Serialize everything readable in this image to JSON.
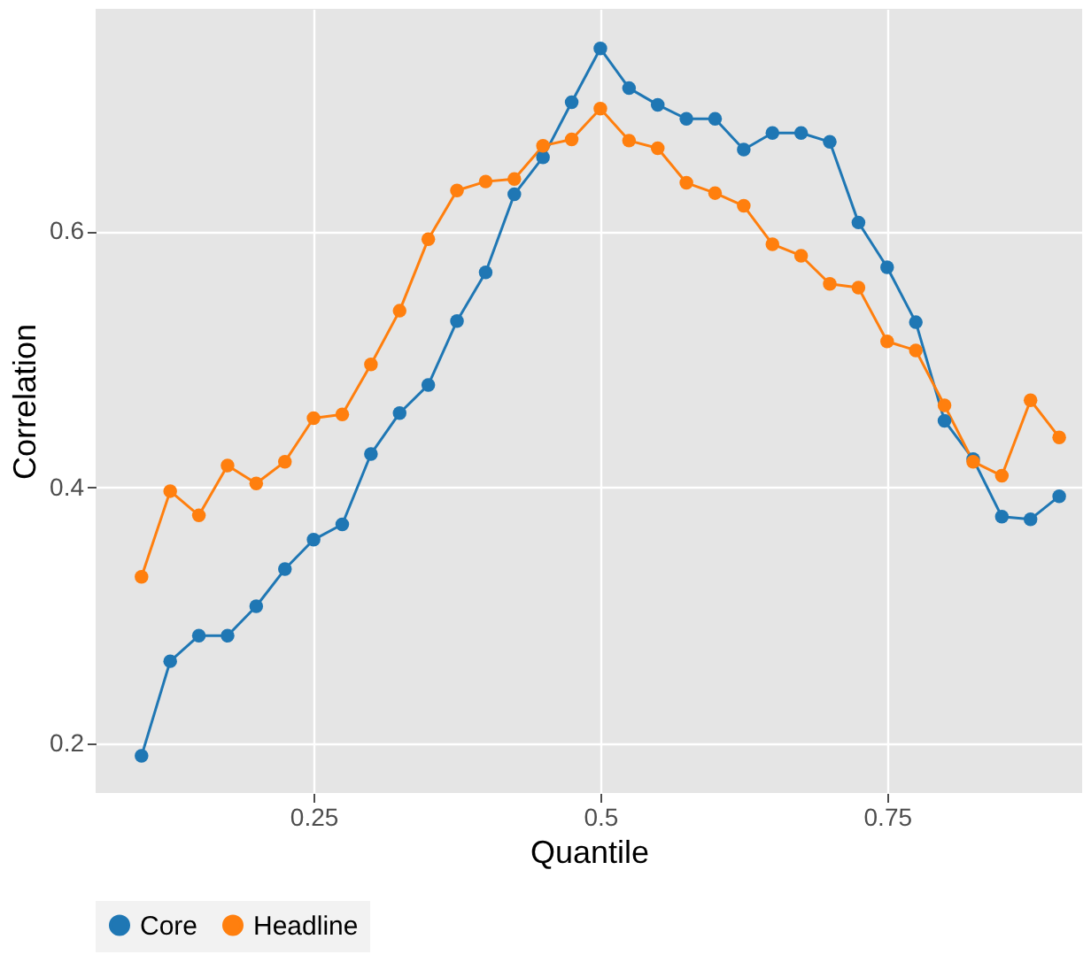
{
  "chart_data": {
    "type": "line",
    "xlabel": "Quantile",
    "ylabel": "Correlation",
    "x": [
      0.1,
      0.125,
      0.15,
      0.175,
      0.2,
      0.225,
      0.25,
      0.275,
      0.3,
      0.325,
      0.35,
      0.375,
      0.4,
      0.425,
      0.45,
      0.475,
      0.5,
      0.525,
      0.55,
      0.575,
      0.6,
      0.625,
      0.65,
      0.675,
      0.7,
      0.725,
      0.75,
      0.775,
      0.8,
      0.825,
      0.85,
      0.875,
      0.9
    ],
    "series": [
      {
        "name": "Core",
        "color": "#1f77b4",
        "values": [
          0.19,
          0.264,
          0.284,
          0.284,
          0.307,
          0.336,
          0.359,
          0.371,
          0.426,
          0.458,
          0.48,
          0.53,
          0.568,
          0.629,
          0.658,
          0.701,
          0.743,
          0.712,
          0.699,
          0.688,
          0.688,
          0.664,
          0.677,
          0.677,
          0.67,
          0.607,
          0.572,
          0.529,
          0.452,
          0.422,
          0.377,
          0.375,
          0.393
        ]
      },
      {
        "name": "Headline",
        "color": "#ff7f0e",
        "values": [
          0.33,
          0.397,
          0.378,
          0.417,
          0.403,
          0.42,
          0.454,
          0.457,
          0.496,
          0.538,
          0.594,
          0.632,
          0.639,
          0.641,
          0.667,
          0.672,
          0.696,
          0.671,
          0.665,
          0.638,
          0.63,
          0.62,
          0.59,
          0.581,
          0.559,
          0.556,
          0.514,
          0.507,
          0.464,
          0.42,
          0.409,
          0.468,
          0.439
        ]
      }
    ],
    "xlim": [
      0.06,
      0.92
    ],
    "ylim": [
      0.161,
      0.774
    ],
    "xticks": [
      0.25,
      0.5,
      0.75
    ],
    "yticks": [
      0.2,
      0.4,
      0.6
    ],
    "grid": true,
    "legend": "bottom",
    "marker": "circle",
    "line_style": "solid"
  }
}
